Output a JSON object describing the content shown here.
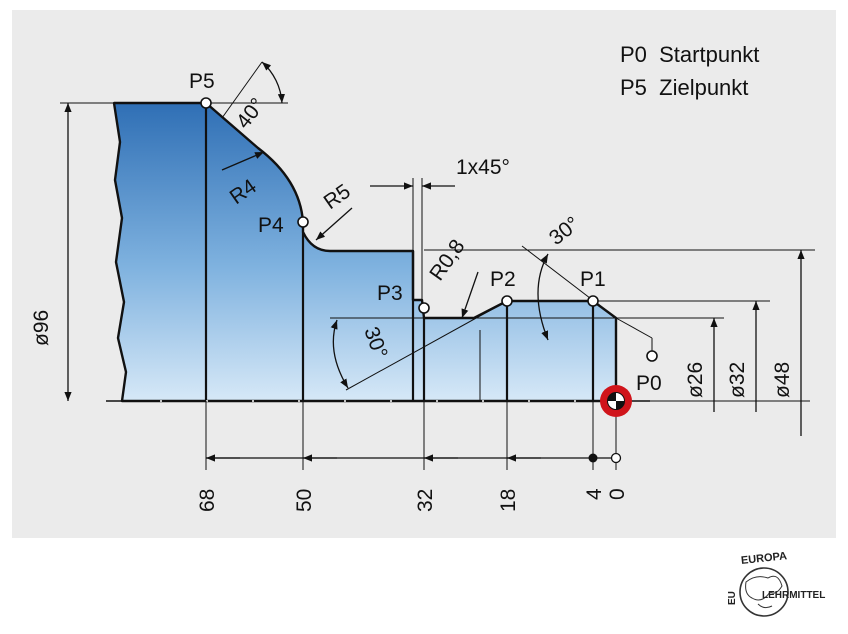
{
  "legend": {
    "line1": "P0  Startpunkt",
    "line2": "P5  Zielpunkt"
  },
  "points": {
    "p0": "P0",
    "p1": "P1",
    "p2": "P2",
    "p3": "P3",
    "p4": "P4",
    "p5": "P5"
  },
  "labels": {
    "angle_40": "40°",
    "angle_30_top": "30°",
    "angle_30_left": "30°",
    "r4": "R4",
    "r5": "R5",
    "r08": "R0,8",
    "chamfer": "1x45°"
  },
  "diameters": {
    "d96": "ø96",
    "d26": "ø26",
    "d32": "ø32",
    "d48": "ø48"
  },
  "x_positions": [
    "68",
    "50",
    "32",
    "18",
    "4",
    "0"
  ],
  "logo": {
    "top": "EUROPA",
    "right": "LEHRMITTEL",
    "left": "EU"
  },
  "colors": {
    "panel": "#ebebeb",
    "part_top": "#2f6fb5",
    "part_bottom": "#cfe4f5",
    "origin": "#d0141b"
  }
}
